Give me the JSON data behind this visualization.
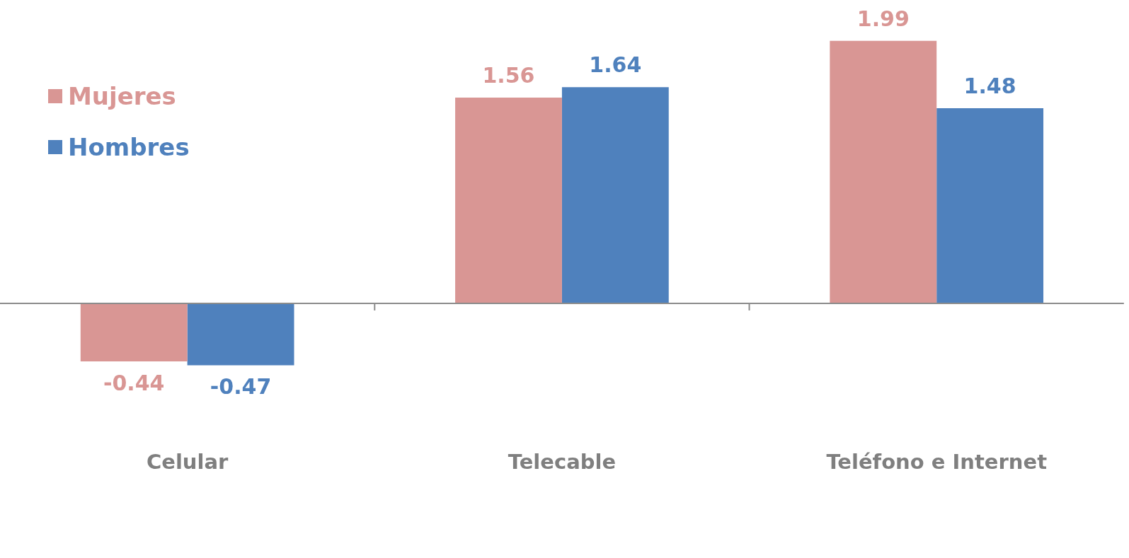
{
  "chart_data": {
    "type": "bar",
    "categories": [
      "Celular",
      "Telecable",
      "Teléfono e Internet"
    ],
    "series": [
      {
        "name": "Mujeres",
        "color": "#d99694",
        "values": [
          -0.44,
          1.56,
          1.99
        ]
      },
      {
        "name": "Hombres",
        "color": "#4f81bd",
        "values": [
          -0.47,
          1.64,
          1.48
        ]
      }
    ],
    "data_labels": true,
    "legend": "top left",
    "grid": false,
    "tick_labels": "x"
  }
}
